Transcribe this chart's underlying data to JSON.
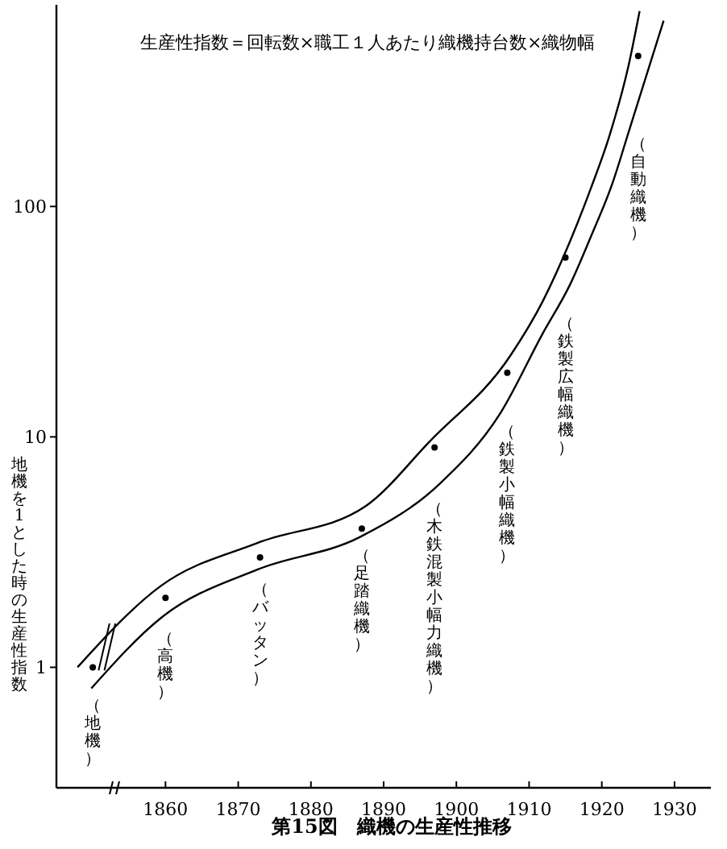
{
  "chart_data": {
    "type": "scatter",
    "title": "第15図　織機の生産性推移",
    "ylabel": "地機を1とした時の生産性指数",
    "log": true,
    "marker": "circle",
    "grid": false,
    "xlim": [
      1845,
      1935
    ],
    "xticks": [
      1860,
      1870,
      1880,
      1890,
      1900,
      1910,
      1920,
      1930
    ],
    "ylim": [
      0.3,
      750
    ],
    "yticks": [
      1,
      10,
      100
    ],
    "series": [
      {
        "type": "scatter",
        "color": "#000000",
        "x": [
          1850,
          1860,
          1873,
          1887,
          1897,
          1907,
          1915,
          1925
        ],
        "values": [
          1,
          2,
          3,
          4,
          9,
          19,
          60,
          450
        ]
      },
      {
        "type": "line",
        "color": "#000000",
        "marker": "none",
        "x": [
          1847.9,
          1859.4,
          1872.7,
          1887.5,
          1896.4,
          1907.5,
          1911.9,
          1915.6,
          1918.5,
          1921.1,
          1923.7,
          1925.2
        ],
        "values": [
          1,
          2.26,
          3.47,
          5,
          9.6,
          22.7,
          38.9,
          70.2,
          120,
          205,
          412,
          705
        ]
      },
      {
        "type": "line",
        "color": "#000000",
        "marker": "none",
        "x": [
          1849.8,
          1859.4,
          1872.7,
          1886.7,
          1897.8,
          1906.0,
          1911.9,
          1915.6,
          1918.5,
          1921.5,
          1923.7,
          1925.9,
          1928.5
        ],
        "values": [
          0.81,
          1.64,
          2.66,
          3.67,
          6.3,
          12.6,
          28.2,
          45.6,
          74,
          127,
          211,
          351,
          640
        ]
      }
    ],
    "annotations": [
      "生産性指数＝回転数×職工１人あたり織機持台数×織物幅",
      "（地機）",
      "（高機）",
      "（バッタン）",
      "（足踏織機）",
      "（木鉄混製小幅力織機）",
      "（鉄製小幅織機）",
      "（鉄製広幅織機）",
      "（自動織機）"
    ]
  }
}
